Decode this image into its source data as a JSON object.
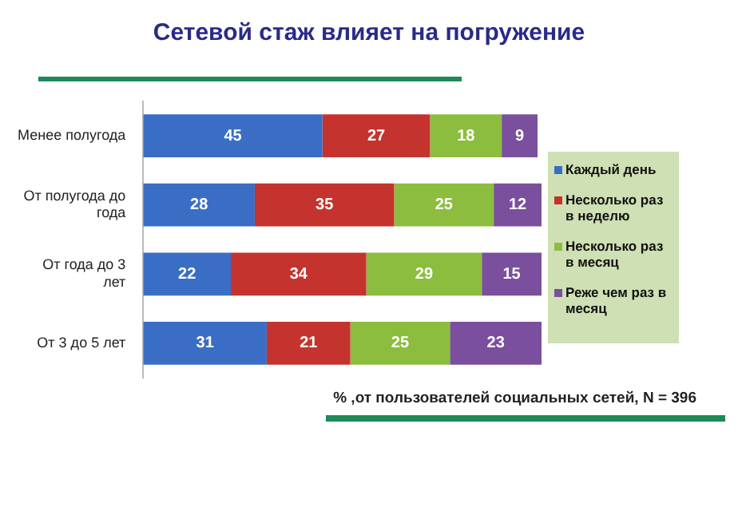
{
  "chart_data": {
    "type": "bar",
    "title": "Сетевой стаж влияет на погружение",
    "orientation": "horizontal",
    "stacked": true,
    "data_labels": true,
    "legend": "right",
    "categories": [
      "Менее полугода",
      "От полугода до года",
      "От года до 3 лет",
      "От 3 до 5 лет"
    ],
    "series": [
      {
        "name": "Каждый день",
        "color": "#3a6ec4",
        "values": [
          45,
          28,
          22,
          31
        ]
      },
      {
        "name": "Несколько раз в неделю",
        "color": "#c4332e",
        "values": [
          27,
          35,
          34,
          21
        ]
      },
      {
        "name": "Несколько раз в месяц",
        "color": "#8cbd3e",
        "values": [
          18,
          25,
          29,
          25
        ]
      },
      {
        "name": "Реже чем раз в месяц",
        "color": "#7a4f9e",
        "values": [
          9,
          12,
          15,
          23
        ]
      }
    ],
    "annotations": [
      "% ,от пользователей социальных сетей, N = 396"
    ]
  }
}
